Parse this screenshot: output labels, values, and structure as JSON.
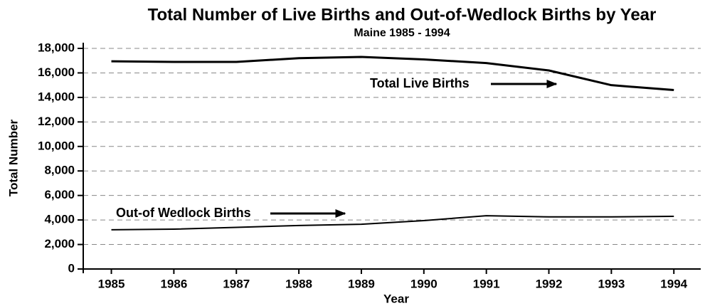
{
  "chart_data": {
    "type": "line",
    "title": "Total Number of Live Births and Out-of-Wedlock Births by Year",
    "subtitle": "Maine 1985 - 1994",
    "x_label": "Year",
    "y_label": "Total Number",
    "x": [
      1985,
      1986,
      1987,
      1988,
      1989,
      1990,
      1991,
      1992,
      1993,
      1994
    ],
    "series": [
      {
        "name": "Total Live Births",
        "color": "#000000",
        "values": [
          16950,
          16900,
          16900,
          17200,
          17300,
          17100,
          16800,
          16200,
          15000,
          14600
        ]
      },
      {
        "name": "Out-of Wedlock Births",
        "color": "#000000",
        "values": [
          3200,
          3250,
          3400,
          3550,
          3650,
          3950,
          4350,
          4250,
          4250,
          4300
        ]
      }
    ],
    "xlim": [
      1984.55,
      1994.43
    ],
    "xticks": [
      1985,
      1986,
      1987,
      1988,
      1989,
      1990,
      1991,
      1992,
      1993,
      1994
    ],
    "ylim": [
      0,
      18000
    ],
    "yticks": [
      0,
      {
        "value": 2000,
        "label": "2,000"
      },
      {
        "value": 4000,
        "label": "4,000"
      },
      {
        "value": 6000,
        "label": "6,000"
      },
      {
        "value": 8000,
        "label": "8,000"
      },
      {
        "value": 10000,
        "label": "10,000"
      },
      {
        "value": 12000,
        "label": "12,000"
      },
      {
        "value": 14000,
        "label": "14,000"
      },
      {
        "value": 16000,
        "label": "16,000"
      },
      {
        "value": 18000,
        "label": "18,000"
      }
    ],
    "grid": true
  }
}
